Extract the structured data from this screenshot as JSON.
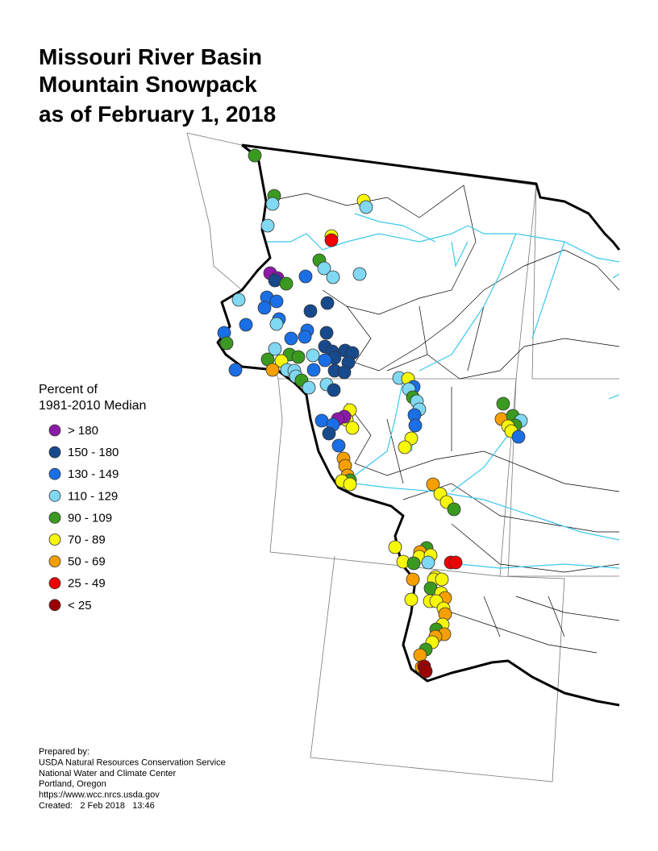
{
  "title": [
    "Missouri River Basin",
    "Mountain Snowpack",
    "as of February 1, 2018"
  ],
  "legend": {
    "title": [
      "Percent of",
      "1981-2010 Median"
    ],
    "items": [
      {
        "label": "> 180",
        "color": "#8c1aa8"
      },
      {
        "label": "150 - 180",
        "color": "#174a8c"
      },
      {
        "label": "130 - 149",
        "color": "#1a6fe6"
      },
      {
        "label": "110 - 129",
        "color": "#80d8f2"
      },
      {
        "label": "90 - 109",
        "color": "#3a9a1f"
      },
      {
        "label": "70 - 89",
        "color": "#f7f70a"
      },
      {
        "label": "50 - 69",
        "color": "#f5a000"
      },
      {
        "label": "25 - 49",
        "color": "#f00000"
      },
      {
        "label": "< 25",
        "color": "#9a0000"
      }
    ]
  },
  "footer": [
    "Prepared by:",
    "USDA Natural Resources Conservation Service",
    "National Water and Climate Center",
    "Portland, Oregon",
    "https://www.wcc.nrcs.usda.gov",
    "Created:   2 Feb 2018   13:46"
  ]
}
